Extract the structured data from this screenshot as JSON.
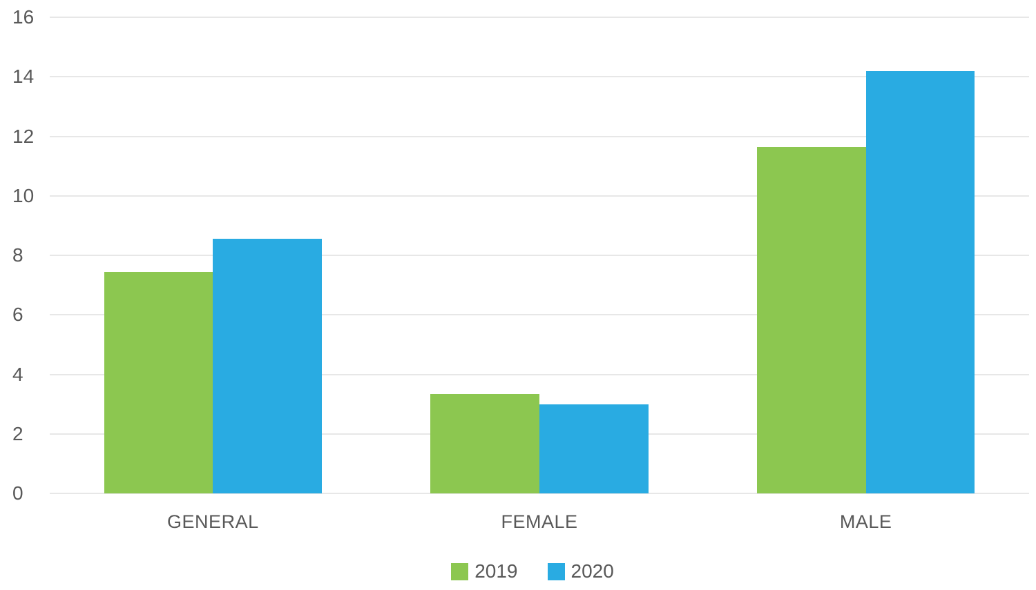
{
  "chart_data": {
    "type": "bar",
    "title": "",
    "xlabel": "",
    "ylabel": "",
    "categories": [
      "GENERAL",
      "FEMALE",
      "MALE"
    ],
    "series": [
      {
        "name": "2019",
        "color": "#8CC750",
        "values": [
          7.45,
          3.35,
          11.65
        ]
      },
      {
        "name": "2020",
        "color": "#29ABE2",
        "values": [
          8.55,
          3.0,
          14.2
        ]
      }
    ],
    "ylim": [
      0,
      16
    ],
    "yticks": [
      0,
      2,
      4,
      6,
      8,
      10,
      12,
      14,
      16
    ],
    "grid": "horizontal",
    "legend_position": "bottom"
  },
  "colors": {
    "series_2019": "#8CC750",
    "series_2020": "#29ABE2",
    "gridline": "#e7e7e7",
    "axis_text": "#595959",
    "background": "#ffffff"
  }
}
